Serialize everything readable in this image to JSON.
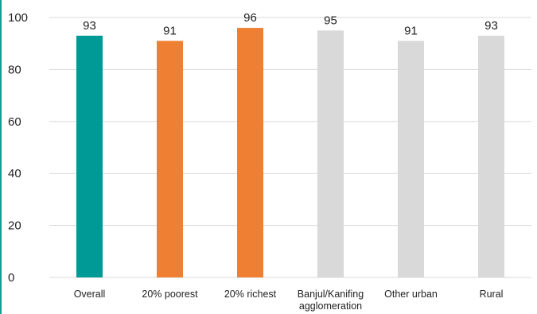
{
  "chart_data": {
    "type": "bar",
    "categories": [
      [
        "Overall"
      ],
      [
        "20% poorest"
      ],
      [
        "20% richest"
      ],
      [
        "Banjul/Kanifing",
        "agglomeration"
      ],
      [
        "Other urban"
      ],
      [
        "Rural"
      ]
    ],
    "values": [
      93,
      91,
      96,
      95,
      91,
      93
    ],
    "colors": [
      "#009a96",
      "#ef7f32",
      "#ef7f32",
      "#d9d9d9",
      "#d9d9d9",
      "#d9d9d9"
    ],
    "ylim": [
      0,
      100
    ],
    "yticks": [
      "0",
      "20",
      "40",
      "60",
      "80",
      "100"
    ],
    "grid": true,
    "legend": "none",
    "title": "",
    "xlabel": "",
    "ylabel": ""
  },
  "colors": {
    "accent_rule": "#1a9a92",
    "gridline": "#d9d9d9"
  }
}
